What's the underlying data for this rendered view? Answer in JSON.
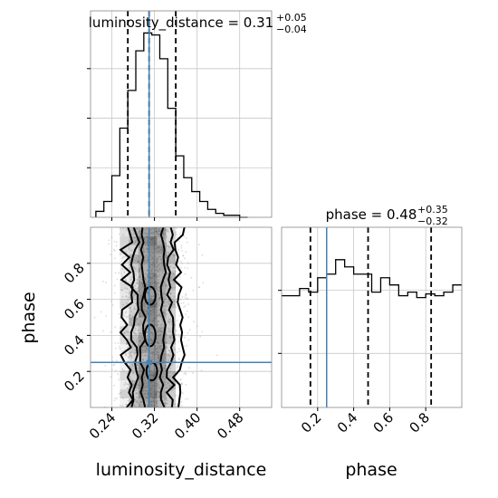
{
  "chart_data": [
    {
      "type": "histogram",
      "panel": "luminosity_distance-marginal",
      "title": {
        "main": "luminosity_distance = 0.31",
        "sup": "+0.05",
        "sub": "−0.04"
      },
      "xlim": [
        0.2,
        0.54
      ],
      "bins": [
        0.21,
        0.225,
        0.24,
        0.255,
        0.27,
        0.285,
        0.3,
        0.315,
        0.33,
        0.345,
        0.36,
        0.375,
        0.39,
        0.405,
        0.42,
        0.435,
        0.45,
        0.465,
        0.48,
        0.495
      ],
      "counts": [
        3,
        8,
        21,
        45,
        64,
        84,
        93,
        92,
        80,
        55,
        31,
        20,
        13,
        8,
        4,
        2,
        1,
        1,
        0
      ],
      "quantiles": [
        0.27,
        0.31,
        0.36
      ],
      "truth": 0.31,
      "grid": true,
      "line_color": "#000000",
      "truth_color": "#4682b4"
    },
    {
      "type": "histogram",
      "panel": "phase-marginal",
      "title": {
        "main": "phase = 0.48",
        "sup": "+0.35",
        "sub": "−0.32"
      },
      "xlim": [
        0.0,
        1.0
      ],
      "bins": [
        0.0,
        0.05,
        0.1,
        0.15,
        0.2,
        0.25,
        0.3,
        0.35,
        0.4,
        0.45,
        0.5,
        0.55,
        0.6,
        0.65,
        0.7,
        0.75,
        0.8,
        0.85,
        0.9,
        0.95,
        1.0
      ],
      "counts": [
        62,
        62,
        66,
        64,
        72,
        74,
        82,
        78,
        74,
        74,
        64,
        72,
        68,
        62,
        64,
        61,
        63,
        62,
        64,
        68
      ],
      "ylim": [
        0,
        100
      ],
      "quantiles": [
        0.16,
        0.48,
        0.83
      ],
      "truth": 0.25,
      "xticks": [
        "0.2",
        "0.4",
        "0.6",
        "0.8"
      ],
      "xtick_values": [
        0.2,
        0.4,
        0.6,
        0.8
      ],
      "xlabel": "phase",
      "grid": true,
      "line_color": "#000000",
      "truth_color": "#4682b4"
    },
    {
      "type": "scatter",
      "panel": "luminosity_distance-vs-phase",
      "xlim": [
        0.2,
        0.54
      ],
      "ylim": [
        0.0,
        1.0
      ],
      "xticks": [
        "0.24",
        "0.32",
        "0.40",
        "0.48"
      ],
      "xtick_values": [
        0.24,
        0.32,
        0.4,
        0.48
      ],
      "yticks": [
        "0.2",
        "0.4",
        "0.6",
        "0.8"
      ],
      "ytick_values": [
        0.2,
        0.4,
        0.6,
        0.8
      ],
      "xlabel": "luminosity_distance",
      "ylabel": "phase",
      "truth": {
        "x": 0.31,
        "y": 0.25
      },
      "contour_columns": [
        0.255,
        0.272,
        0.29,
        0.307,
        0.325,
        0.342,
        0.36
      ],
      "grid": true,
      "point_color": "#9a9a9a",
      "contour_color": "#000000",
      "truth_color": "#4682b4"
    }
  ]
}
